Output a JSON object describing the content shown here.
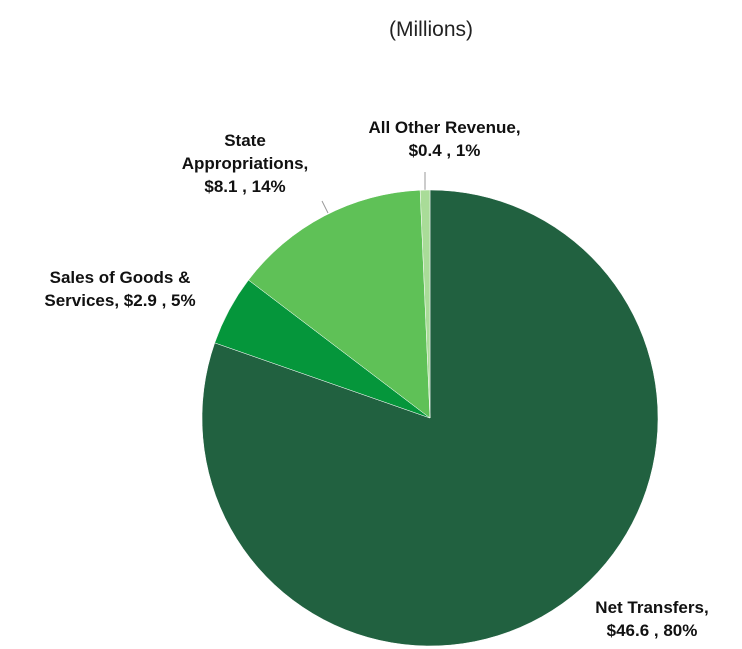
{
  "chart_data": {
    "type": "pie",
    "title": "(Millions)",
    "categories": [
      "Net Transfers",
      "Sales of Goods & Services",
      "State Appropriations",
      "All Other Revenue"
    ],
    "values": [
      46.6,
      2.9,
      8.1,
      0.4
    ],
    "value_labels": [
      "$46.6 , 80%",
      "$2.9 , 5%",
      "$8.1 , 14%",
      "$0.4 , 1%"
    ],
    "colors": [
      "#216140",
      "#05963b",
      "#5fc157",
      "#a9dc98"
    ]
  }
}
